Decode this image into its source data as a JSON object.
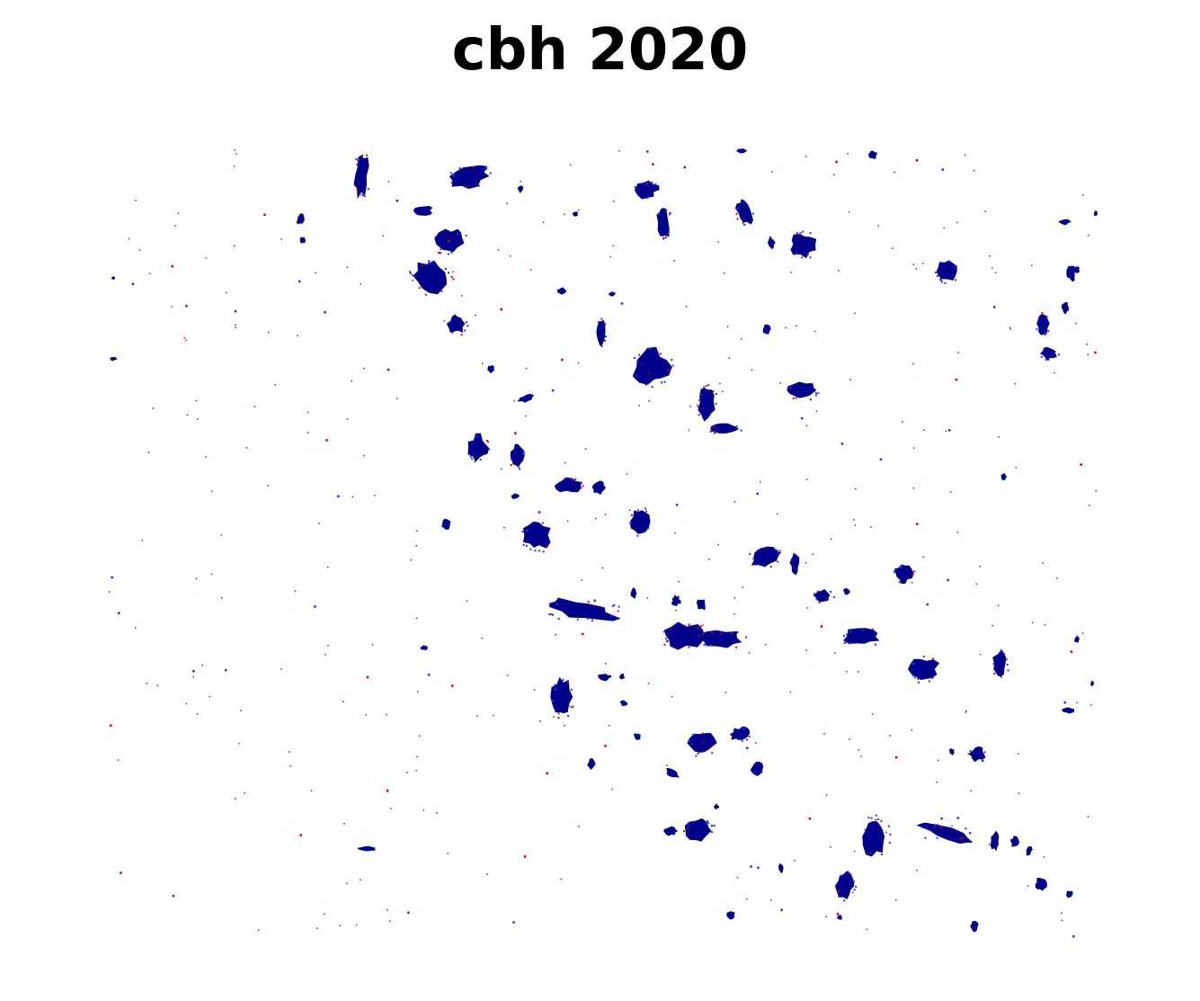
{
  "title": "cbh 2020",
  "colors": {
    "background": "#ffffff",
    "patch_primary": "#00008b",
    "patch_secondary": "#3030e0",
    "speckle": "#e00000"
  }
}
